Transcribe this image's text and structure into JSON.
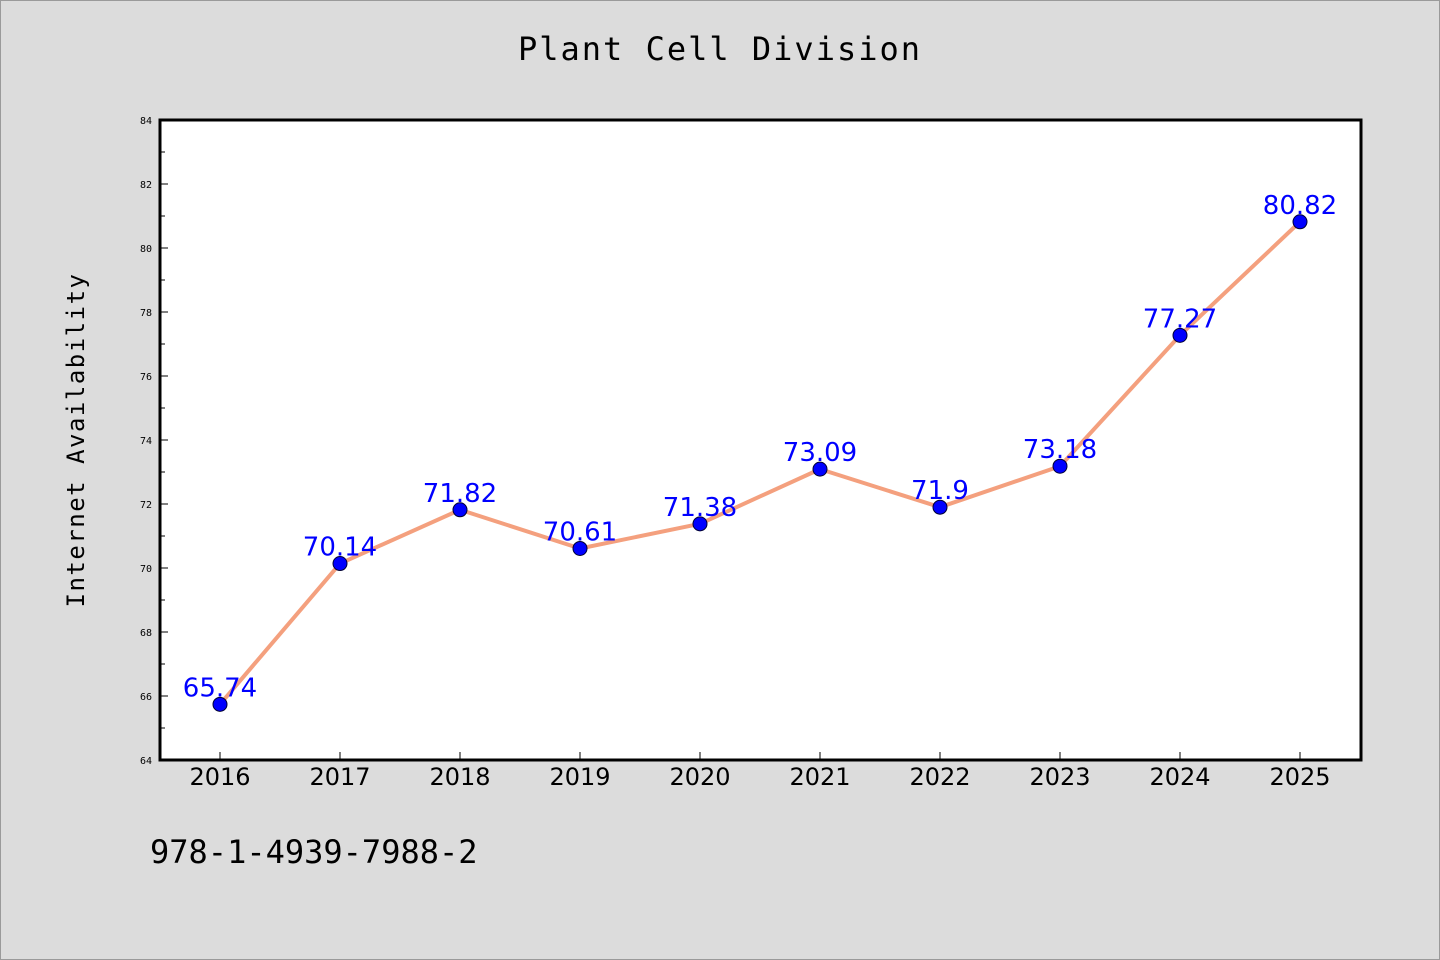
{
  "chart_data": {
    "type": "line",
    "title": "Plant Cell Division",
    "xlabel": "",
    "ylabel": "Internet Availability",
    "categories": [
      "2016",
      "2017",
      "2018",
      "2019",
      "2020",
      "2021",
      "2022",
      "2023",
      "2024",
      "2025"
    ],
    "series": [
      {
        "values": [
          65.74,
          70.14,
          71.82,
          70.61,
          71.38,
          73.09,
          71.9,
          73.18,
          77.27,
          80.82
        ],
        "data_labels": [
          "65.74",
          "70.14",
          "71.82",
          "70.61",
          "71.38",
          "73.09",
          "71.9",
          "73.18",
          "77.27",
          "80.82"
        ]
      }
    ],
    "ylim": [
      64,
      84
    ],
    "yticks": [
      "64",
      "66",
      "68",
      "70",
      "72",
      "74",
      "76",
      "78",
      "80",
      "82",
      "84"
    ],
    "grid": false,
    "legend": "none",
    "colors": {
      "line": "#f4a07e",
      "marker": "#0000ff",
      "data_label": "#0000ff",
      "background": "#dcdcdc",
      "plot_area": "#ffffff"
    }
  },
  "footer_text": "978-1-4939-7988-2"
}
